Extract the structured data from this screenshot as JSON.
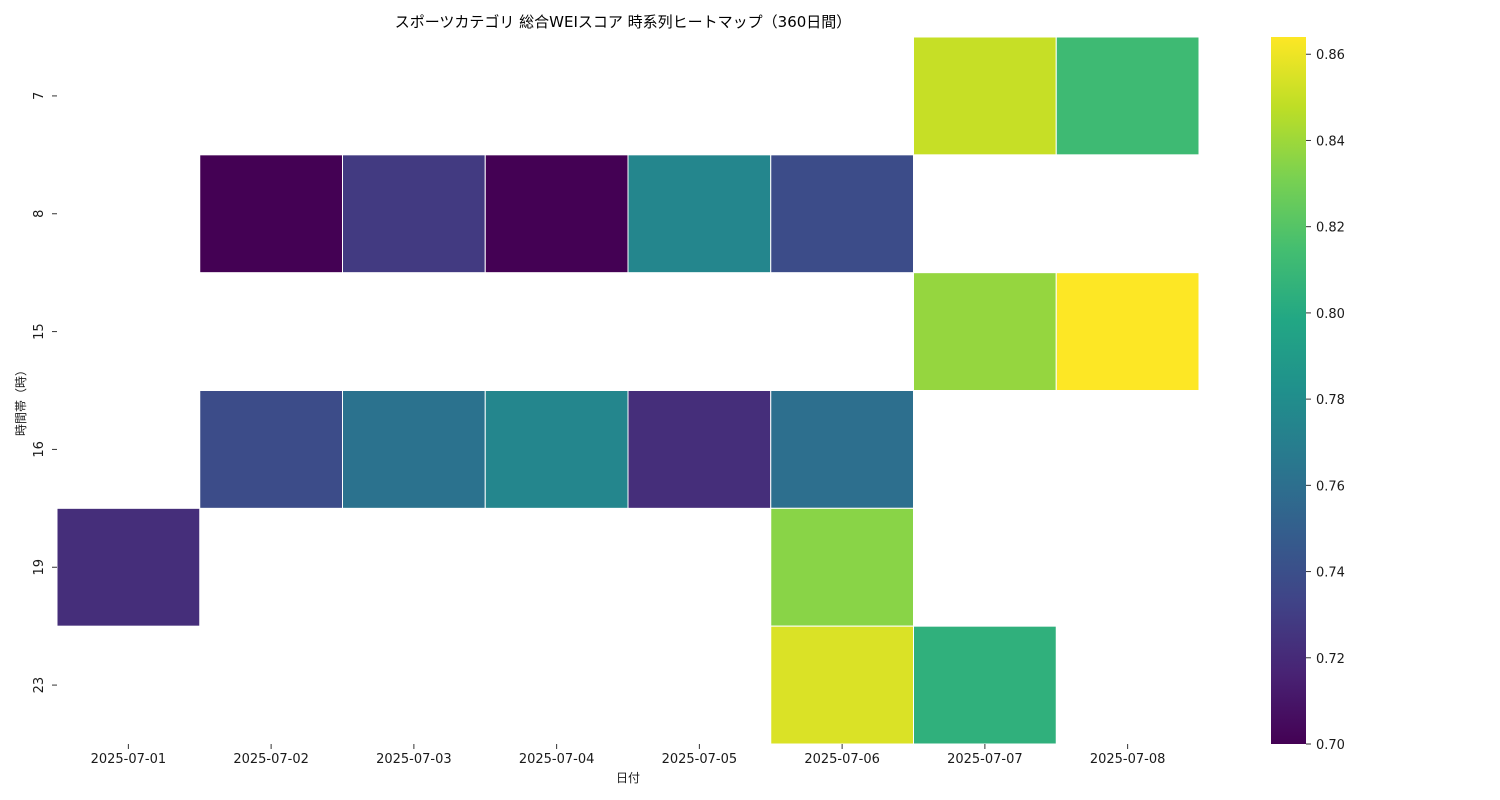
{
  "chart_data": {
    "type": "heatmap",
    "title": "スポーツカテゴリ 総合WEIスコア 時系列ヒートマップ（360日間）",
    "xlabel": "日付",
    "ylabel": "時間帯（時）",
    "x_categories": [
      "2025-07-01",
      "2025-07-02",
      "2025-07-03",
      "2025-07-04",
      "2025-07-05",
      "2025-07-06",
      "2025-07-07",
      "2025-07-08"
    ],
    "y_categories": [
      "7",
      "8",
      "15",
      "16",
      "19",
      "23"
    ],
    "values": [
      [
        null,
        null,
        null,
        null,
        null,
        null,
        0.85,
        0.812
      ],
      [
        null,
        0.7,
        0.728,
        0.7,
        0.775,
        0.738,
        null,
        null
      ],
      [
        null,
        null,
        null,
        null,
        null,
        null,
        0.838,
        0.864
      ],
      [
        null,
        0.738,
        0.762,
        0.775,
        0.722,
        0.76,
        null,
        null
      ],
      [
        0.722,
        null,
        null,
        null,
        null,
        0.835,
        null,
        null
      ],
      [
        null,
        null,
        null,
        null,
        null,
        0.855,
        0.805,
        null
      ]
    ],
    "colorbar": {
      "min": 0.7,
      "max": 0.864,
      "ticks": [
        "0.70",
        "0.72",
        "0.74",
        "0.76",
        "0.78",
        "0.80",
        "0.82",
        "0.84",
        "0.86"
      ],
      "colormap": "viridis"
    }
  }
}
